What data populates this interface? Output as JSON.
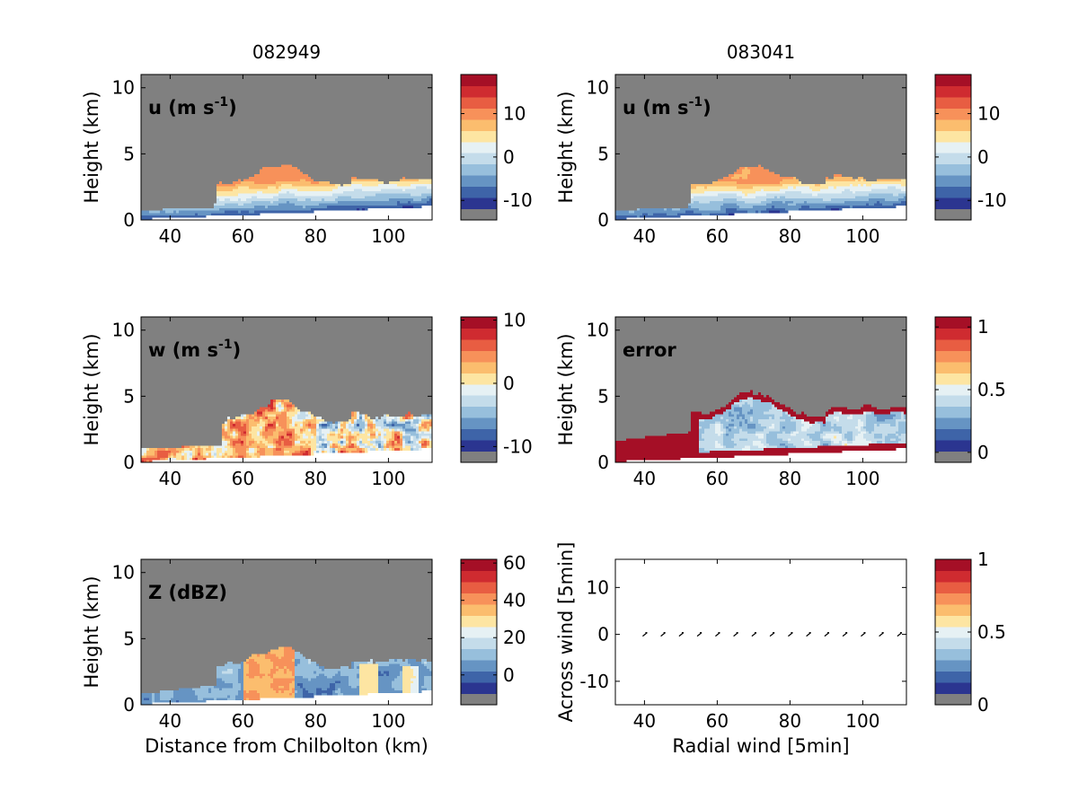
{
  "figure": {
    "column_titles": [
      "082949",
      "083041"
    ],
    "colormap": [
      "#808080",
      "#2b3590",
      "#3e64a8",
      "#6694c3",
      "#97bfdc",
      "#c4dcea",
      "#e6f1f4",
      "#fde5a2",
      "#fbbd6e",
      "#f7915a",
      "#e85d42",
      "#cf2b30",
      "#a50f26"
    ]
  },
  "chart_data": [
    {
      "type": "heatmap",
      "panel": "u",
      "column_title": "082949",
      "label": "u (m s",
      "label_sup": "-1",
      "label_close": ")",
      "ylabel": "Height (km)",
      "xlabel": "",
      "xlim": [
        32,
        112
      ],
      "ylim": [
        0,
        11
      ],
      "xticks": [
        40,
        60,
        80,
        100
      ],
      "yticks": [
        0,
        5,
        10
      ],
      "colorbar": {
        "ticks": [
          -10,
          0,
          10
        ],
        "range": [
          -14.5,
          19
        ]
      },
      "field": "u"
    },
    {
      "type": "heatmap",
      "panel": "u",
      "column_title": "083041",
      "label": "u (m s",
      "label_sup": "-1",
      "label_close": ")",
      "ylabel": "Height (km)",
      "xlabel": "",
      "xlim": [
        32,
        112
      ],
      "ylim": [
        0,
        11
      ],
      "xticks": [
        40,
        60,
        80,
        100
      ],
      "yticks": [
        0,
        5,
        10
      ],
      "colorbar": {
        "ticks": [
          -10,
          0,
          10
        ],
        "range": [
          -14.5,
          19
        ]
      },
      "field": "u2"
    },
    {
      "type": "heatmap",
      "panel": "w",
      "label": "w (m s",
      "label_sup": "-1",
      "label_close": ")",
      "ylabel": "Height (km)",
      "xlabel": "",
      "xlim": [
        32,
        112
      ],
      "ylim": [
        0,
        11
      ],
      "xticks": [
        40,
        60,
        80,
        100
      ],
      "yticks": [
        0,
        5,
        10
      ],
      "colorbar": {
        "ticks": [
          -10,
          0,
          10
        ],
        "range": [
          -12.5,
          10.5
        ]
      },
      "field": "w"
    },
    {
      "type": "heatmap",
      "panel": "error",
      "label": "error",
      "label_sup": "",
      "label_close": "",
      "ylabel": "Height (km)",
      "xlabel": "",
      "xlim": [
        32,
        112
      ],
      "ylim": [
        0,
        11
      ],
      "xticks": [
        40,
        60,
        80,
        100
      ],
      "yticks": [
        0,
        5,
        10
      ],
      "colorbar": {
        "ticks": [
          0,
          0.5,
          1
        ],
        "range": [
          -0.08,
          1.08
        ]
      },
      "field": "error"
    },
    {
      "type": "heatmap",
      "panel": "Z",
      "label": "Z (dBZ)",
      "label_sup": "",
      "label_close": "",
      "ylabel": "Height (km)",
      "xlabel": "Distance from Chilbolton (km)",
      "xlim": [
        32,
        112
      ],
      "ylim": [
        0,
        11
      ],
      "xticks": [
        40,
        60,
        80,
        100
      ],
      "yticks": [
        0,
        5,
        10
      ],
      "colorbar": {
        "ticks": [
          0,
          20,
          40,
          60
        ],
        "range": [
          -16,
          62
        ]
      },
      "field": "Z"
    },
    {
      "type": "scatter",
      "panel": "wind-vectors",
      "label": "",
      "xlabel": "Radial wind [5min]",
      "ylabel": "Across wind [5min]",
      "xlim": [
        32,
        112
      ],
      "ylim": [
        -15,
        16
      ],
      "xticks": [
        40,
        60,
        80,
        100
      ],
      "yticks": [
        -10,
        0,
        10
      ],
      "colorbar": {
        "ticks": [
          0,
          0.5,
          1
        ],
        "range": [
          0,
          1
        ]
      },
      "x": [
        40,
        45,
        50,
        55,
        60,
        65,
        70,
        75,
        80,
        85,
        90,
        95,
        100,
        105,
        110
      ],
      "y": [
        0,
        0,
        0,
        0,
        0,
        0,
        0,
        0,
        0,
        0,
        0,
        0,
        0,
        0,
        0
      ]
    }
  ]
}
